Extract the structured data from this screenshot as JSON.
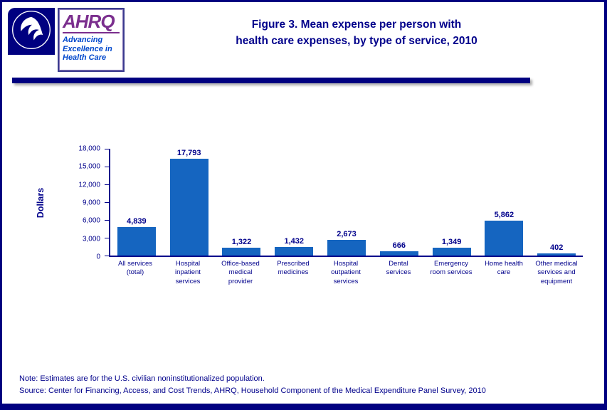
{
  "title": {
    "line1": "Figure 3. Mean expense per person with",
    "line2": "health care expenses, by type of service, 2010"
  },
  "header": {
    "ahrq": {
      "name": "AHRQ",
      "tagline": [
        "Advancing",
        "Excellence in",
        "Health Care"
      ]
    }
  },
  "chart_data": {
    "type": "bar",
    "title": "Figure 3. Mean expense per person with health care expenses, by type of service, 2010",
    "xlabel": "",
    "ylabel": "Dollars",
    "ylim": [
      0,
      18000
    ],
    "yticks": [
      0,
      3000,
      6000,
      9000,
      12000,
      15000,
      18000
    ],
    "ytick_labels": [
      "0",
      "3,000",
      "6,000",
      "9,000",
      "12,000",
      "15,000",
      "18,000"
    ],
    "categories": [
      "All services (total)",
      "Hospital inpatient services",
      "Office-based medical provider",
      "Prescribed medicines",
      "Hospital outpatient services",
      "Dental services",
      "Emergency room services",
      "Home health care",
      "Other medical services and equipment"
    ],
    "values": [
      4839,
      17793,
      1322,
      1432,
      2673,
      666,
      1349,
      5862,
      402
    ],
    "value_labels": [
      "4,839",
      "17,793",
      "1,322",
      "1,432",
      "2,673",
      "666",
      "1,349",
      "5,862",
      "402"
    ],
    "bar_color": "#1565C0",
    "grid": false,
    "legend": null
  },
  "colors": {
    "navy": "#00008B",
    "border": "#000080",
    "bar_blue": "#1565C0",
    "ahrq_purple": "#7B2F8E",
    "ahrq_blue": "#0047CC"
  },
  "footer": {
    "note": "Note: Estimates are for the U.S. civilian noninstitutionalized population.",
    "source": "Source: Center for Financing, Access, and Cost Trends, AHRQ, Household Component of the Medical Expenditure Panel Survey, 2010"
  }
}
